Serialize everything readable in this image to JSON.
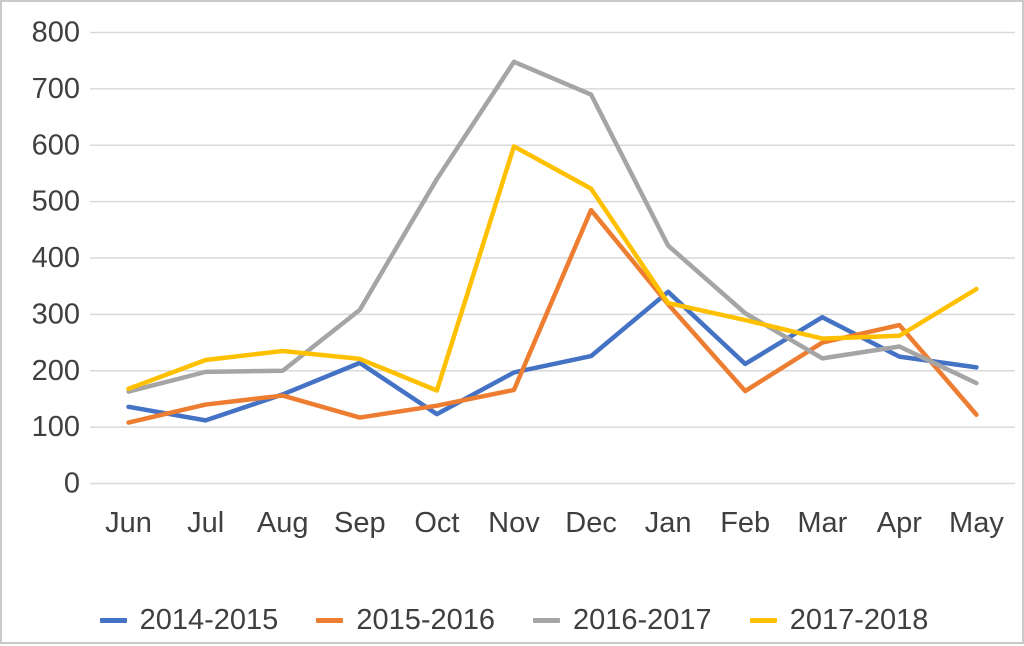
{
  "chart_data": {
    "type": "line",
    "title": "",
    "xlabel": "",
    "ylabel": "",
    "categories": [
      "Jun",
      "Jul",
      "Aug",
      "Sep",
      "Oct",
      "Nov",
      "Dec",
      "Jan",
      "Feb",
      "Mar",
      "Apr",
      "May"
    ],
    "series": [
      {
        "name": "2014-2015",
        "color": "#4472C4",
        "values": [
          136,
          112,
          158,
          214,
          123,
          197,
          226,
          340,
          212,
          295,
          225,
          206
        ]
      },
      {
        "name": "2015-2016",
        "color": "#ED7D31",
        "values": [
          108,
          140,
          156,
          117,
          138,
          166,
          485,
          318,
          164,
          250,
          281,
          122
        ]
      },
      {
        "name": "2016-2017",
        "color": "#A5A5A5",
        "values": [
          163,
          198,
          200,
          308,
          540,
          748,
          690,
          422,
          302,
          222,
          243,
          178
        ]
      },
      {
        "name": "2017-2018",
        "color": "#FFC000",
        "values": [
          168,
          219,
          235,
          221,
          165,
          598,
          523,
          320,
          290,
          257,
          262,
          345
        ]
      }
    ],
    "ylim": [
      0,
      800
    ],
    "ytick_step": 100,
    "ytick_labels": [
      "0",
      "100",
      "200",
      "300",
      "400",
      "500",
      "600",
      "700",
      "800"
    ],
    "grid": true,
    "legend_position": "bottom",
    "gridline_color": "#D9D9D9",
    "text_color": "#3f3f3f"
  }
}
